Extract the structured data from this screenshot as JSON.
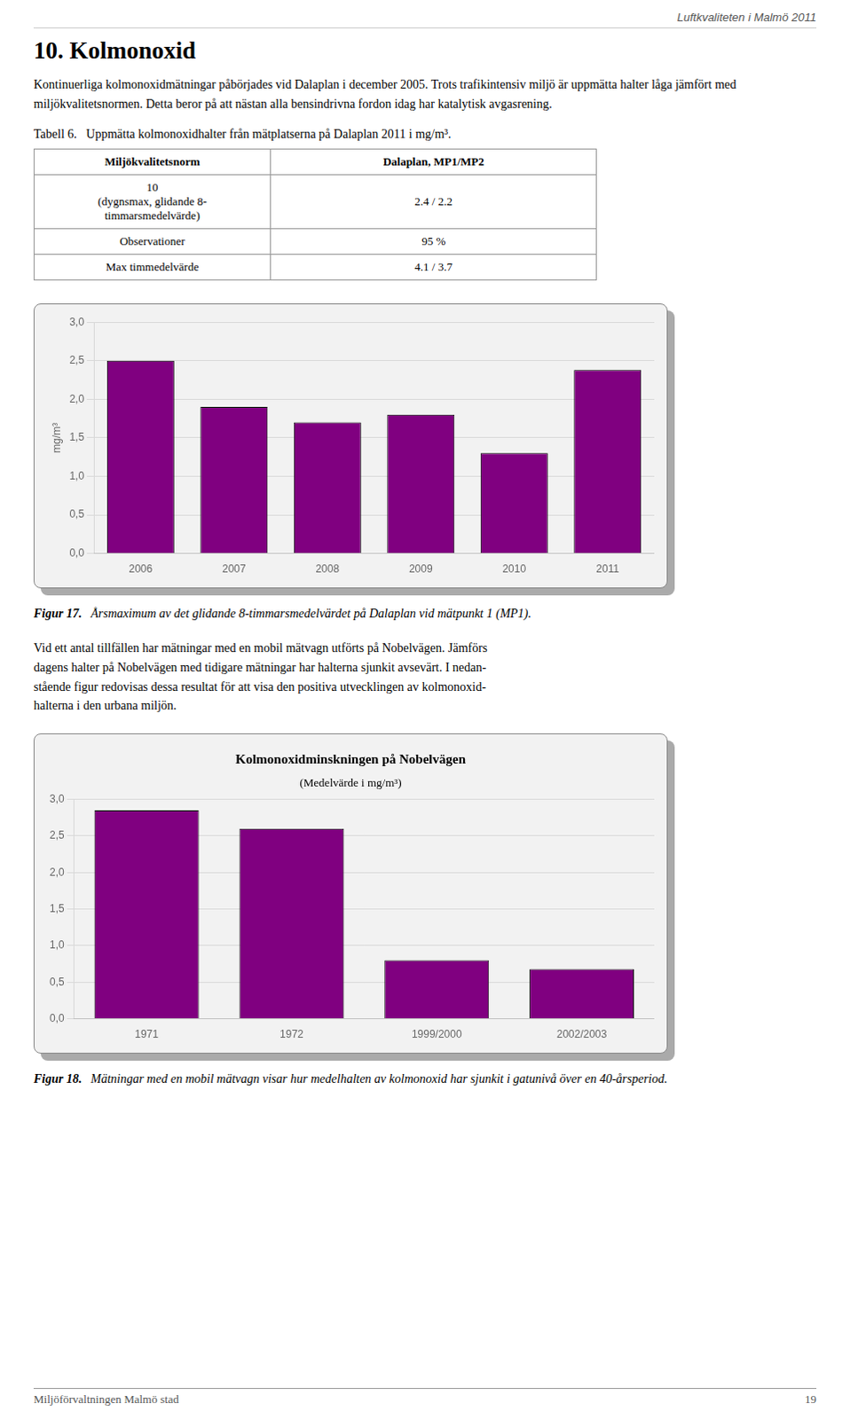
{
  "page_title": "Luftkvaliteten i Malmö 2011",
  "section_title": "10. Kolmonoxid",
  "body_text1": "Kontinuerliga kolmonoxidmätningar påbörjades vid Dalaplan i december 2005. Trots trafikintensiv miljö är uppmätta halter låga jämfört med miljökvalitetsnormen. Detta beror på att nästan alla bensindrivna fordon idag har katalytisk avgasrening.",
  "table_title": "Tabell 6.   Uppmätta kolmonoxidhalter från mätplatserna på Dalaplan 2011 i mg/m³.",
  "table_rows": [
    [
      "Miljökvalitetsnorm",
      "Dalaplan, MP1/MP2"
    ],
    [
      "10\n(dygnsmax, glidande 8-\ntimmarsmedelvärde)",
      "2.4 / 2.2"
    ],
    [
      "Observationer",
      "95 %"
    ],
    [
      "Max timmedelvärde",
      "4.1 / 3.7"
    ]
  ],
  "body_text2_lines": [
    "Vid ett antal tillfällen har mätningar med en mobil mätvagn utförts på Nobelvägen. Jämförs",
    "dagens halter på Nobelvägen med tidigare mätningar har halterna sjunkit avsevärt. I nedan-",
    "stående figur redovisas dessa resultat för att visa den positiva utvecklingen av kolmonoxid-",
    "halterna i den urbana miljön."
  ],
  "footer_left": "Miljöförvaltningen Malmö stad",
  "footer_right": "19",
  "chart_data": [
    {
      "type": "bar",
      "ylabel": "mg/m³",
      "categories": [
        "2006",
        "2007",
        "2008",
        "2009",
        "2010",
        "2011"
      ],
      "values": [
        2.5,
        1.9,
        1.7,
        1.8,
        1.3,
        2.38
      ],
      "color": "#800080",
      "ylim": [
        0.0,
        3.0
      ],
      "yticks": [
        {
          "value": 0.0,
          "label": "0,0"
        },
        {
          "value": 0.5,
          "label": "0,5"
        },
        {
          "value": 1.0,
          "label": "1,0"
        },
        {
          "value": 1.5,
          "label": "1,5"
        },
        {
          "value": 2.0,
          "label": "2,0"
        },
        {
          "value": 2.5,
          "label": "2,5"
        },
        {
          "value": 3.0,
          "label": "3,0"
        }
      ],
      "grid": true,
      "caption": {
        "label": "Figur 17.",
        "text": "Årsmaximum av det glidande 8-timmarsmedelvärdet på Dalaplan vid mätpunkt 1 (MP1)."
      }
    },
    {
      "type": "bar",
      "title": "Kolmonoxidminskningen på Nobelvägen",
      "subtitle": "(Medelvärde i mg/m³)",
      "categories": [
        "1971",
        "1972",
        "1999/2000",
        "2002/2003"
      ],
      "values": [
        2.85,
        2.6,
        0.8,
        0.68
      ],
      "color": "#800080",
      "ylim": [
        0.0,
        3.0
      ],
      "yticks": [
        {
          "value": 0.0,
          "label": "0,0"
        },
        {
          "value": 0.5,
          "label": "0,5"
        },
        {
          "value": 1.0,
          "label": "1,0"
        },
        {
          "value": 1.5,
          "label": "1,5"
        },
        {
          "value": 2.0,
          "label": "2,0"
        },
        {
          "value": 2.5,
          "label": "2,5"
        },
        {
          "value": 3.0,
          "label": "3,0"
        }
      ],
      "grid": true,
      "caption": {
        "label": "Figur 18.",
        "text": "Mätningar med en mobil mätvagn visar hur medelhalten av kolmonoxid har sjunkit i gatunivå över en 40-årsperiod."
      }
    }
  ]
}
